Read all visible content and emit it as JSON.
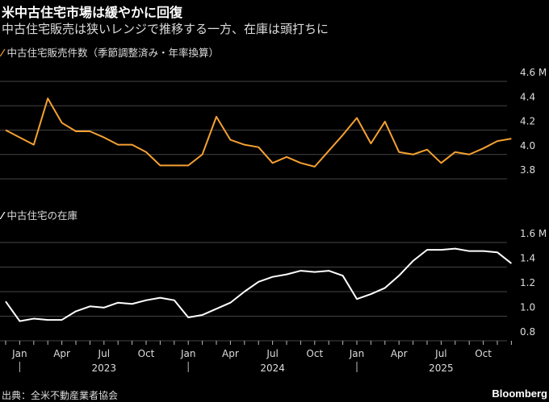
{
  "title": "米中古住宅市場は緩やかに回復",
  "subtitle": "中古住宅販売は狭いレンジで推移する一方、在庫は頭打ちに",
  "source": "出典：全米不動産業者協会",
  "brand": "Bloomberg",
  "chart_data": [
    {
      "type": "line",
      "title": "中古住宅販売件数（季節調整済み・年率換算）",
      "color": "#f5a032",
      "unit": "M",
      "ylim": [
        3.8,
        4.6
      ],
      "yticks": [
        "4.6 M",
        "4.4",
        "4.2",
        "4.0",
        "3.8"
      ],
      "ytick_values": [
        4.6,
        4.4,
        4.2,
        4.0,
        3.8
      ],
      "x_start": "2022-12",
      "x_end": "2025-12",
      "values": [
        4.2,
        4.14,
        4.08,
        4.46,
        4.26,
        4.19,
        4.19,
        4.14,
        4.08,
        4.08,
        4.02,
        3.91,
        3.91,
        3.91,
        4.0,
        4.31,
        4.12,
        4.08,
        4.06,
        3.93,
        3.98,
        3.93,
        3.9,
        4.03,
        4.16,
        4.3,
        4.09,
        4.27,
        4.02,
        4.0,
        4.04,
        3.93,
        4.02,
        4.0,
        4.05,
        4.11,
        4.13
      ]
    },
    {
      "type": "line",
      "title": "中古住宅の在庫",
      "color": "#ffffff",
      "unit": "M",
      "ylim": [
        0.8,
        1.6
      ],
      "yticks": [
        "1.6 M",
        "1.4",
        "1.2",
        "1.0",
        "0.8"
      ],
      "ytick_values": [
        1.6,
        1.4,
        1.2,
        1.0,
        0.8
      ],
      "x_start": "2022-12",
      "x_end": "2025-12",
      "values": [
        1.12,
        0.96,
        0.98,
        0.97,
        0.97,
        1.04,
        1.08,
        1.07,
        1.11,
        1.1,
        1.13,
        1.15,
        1.13,
        0.99,
        1.01,
        1.06,
        1.11,
        1.2,
        1.28,
        1.32,
        1.34,
        1.37,
        1.36,
        1.37,
        1.33,
        1.14,
        1.18,
        1.23,
        1.33,
        1.45,
        1.54,
        1.54,
        1.55,
        1.53,
        1.53,
        1.52,
        1.43
      ]
    }
  ],
  "x_axis": {
    "month_labels": [
      {
        "label": "Jan",
        "idx": 1
      },
      {
        "label": "Apr",
        "idx": 4
      },
      {
        "label": "Jul",
        "idx": 7
      },
      {
        "label": "Oct",
        "idx": 10
      },
      {
        "label": "Jan",
        "idx": 13
      },
      {
        "label": "Apr",
        "idx": 16
      },
      {
        "label": "Jul",
        "idx": 19
      },
      {
        "label": "Oct",
        "idx": 22
      },
      {
        "label": "Jan",
        "idx": 25
      },
      {
        "label": "Apr",
        "idx": 28
      },
      {
        "label": "Jul",
        "idx": 31
      },
      {
        "label": "Oct",
        "idx": 34
      }
    ],
    "years": [
      {
        "label": "2023",
        "idx": 7
      },
      {
        "label": "2024",
        "idx": 19
      },
      {
        "label": "2025",
        "idx": 31
      }
    ]
  }
}
